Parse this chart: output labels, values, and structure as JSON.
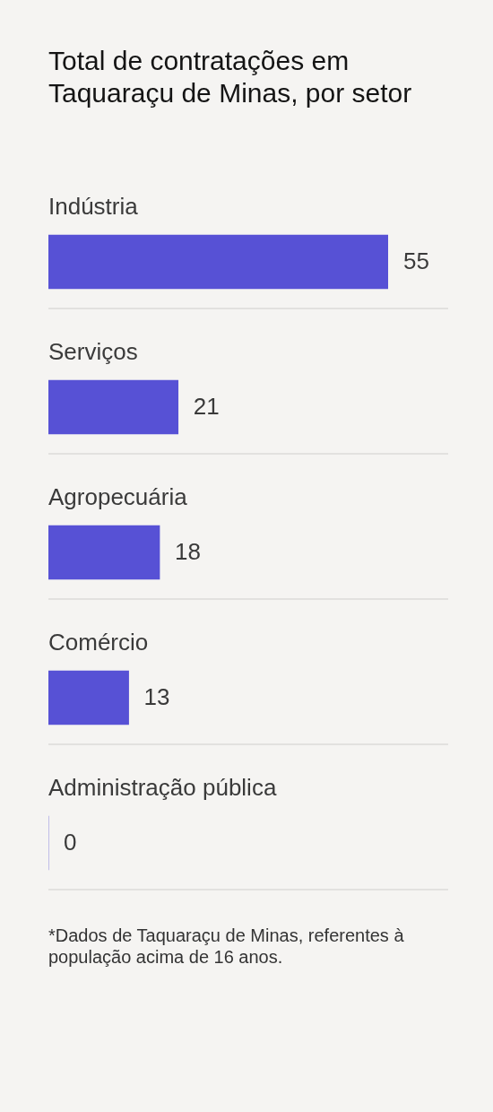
{
  "chart_data": {
    "type": "bar",
    "orientation": "horizontal",
    "title": "Total de contratações em Taquaraçu de Minas, por setor",
    "categories": [
      "Indústria",
      "Serviços",
      "Agropecuária",
      "Comércio",
      "Administração pública"
    ],
    "values": [
      55,
      21,
      18,
      13,
      0
    ],
    "color": "#5751d5",
    "data_labels": true,
    "grid": "y",
    "annotations": [
      "*Dados de Taquaraçu de Minas, referentes à população acima de 16 anos."
    ]
  }
}
